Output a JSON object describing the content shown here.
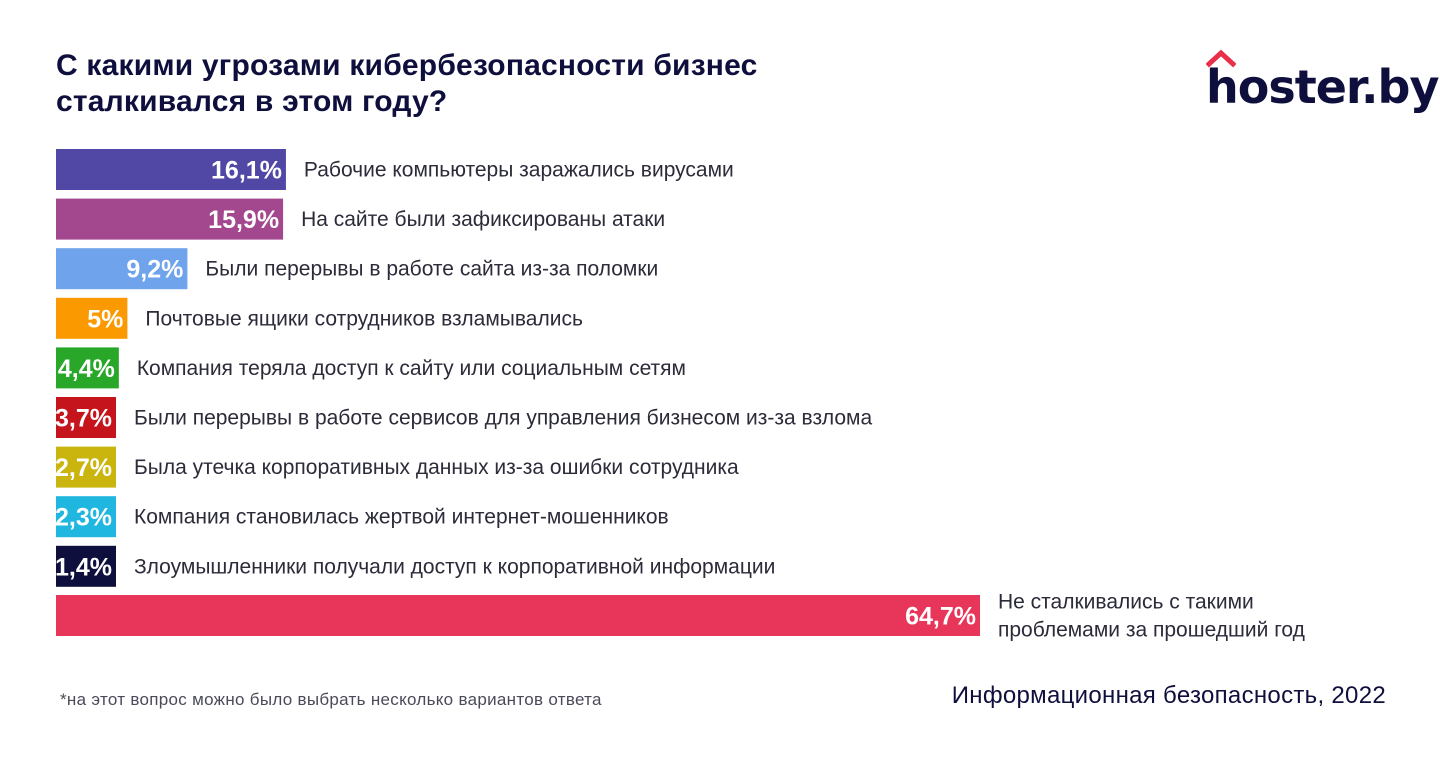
{
  "header": {
    "title_line1": "С какими угрозами кибербезопасности бизнес",
    "title_line2": "сталкивался в этом году?"
  },
  "logo": {
    "text": "hoster.by",
    "roof_color": "#e8304a"
  },
  "chart_data": {
    "type": "bar",
    "orientation": "horizontal",
    "unit": "%",
    "categories": [
      "Рабочие компьютеры заражались вирусами",
      "На сайте были зафиксированы атаки",
      "Были перерывы в работе сайта из-за поломки",
      "Почтовые ящики сотрудников взламывались",
      "Компания теряла доступ к сайту или социальным сетям",
      "Были перерывы в работе сервисов для управления бизнесом из-за взлома",
      "Была утечка корпоративных данных из-за ошибки сотрудника",
      "Компания становилась жертвой интернет-мошенников",
      "Злоумышленники получали доступ к корпоративной информации",
      "Не сталкивались с такими проблемами за прошедший год"
    ],
    "category_lines": [
      [
        "Рабочие компьютеры заражались вирусами"
      ],
      [
        "На сайте были зафиксированы атаки"
      ],
      [
        "Были перерывы в работе сайта из-за поломки"
      ],
      [
        "Почтовые ящики сотрудников взламывались"
      ],
      [
        "Компания теряла доступ к сайту или социальным сетям"
      ],
      [
        "Были перерывы в работе сервисов для управления бизнесом из-за взлома"
      ],
      [
        "Была утечка корпоративных данных из-за ошибки сотрудника"
      ],
      [
        "Компания становилась жертвой интернет-мошенников"
      ],
      [
        "Злоумышленники получали доступ к корпоративной информации"
      ],
      [
        "Не сталкивались с такими",
        "проблемами за прошедший год"
      ]
    ],
    "values": [
      16.1,
      15.9,
      9.2,
      5,
      4.4,
      3.7,
      2.7,
      2.3,
      1.4,
      64.7
    ],
    "value_labels": [
      "16,1%",
      "15,9%",
      "9,2%",
      "5%",
      "4,4%",
      "3,7%",
      "2,7%",
      "2,3%",
      "1,4%",
      "64,7%"
    ],
    "colors": [
      "#5148a6",
      "#a3488e",
      "#6fa3ec",
      "#fb9a00",
      "#29a729",
      "#c5141b",
      "#c9b50e",
      "#1fb6e0",
      "#0f0f3d",
      "#e8365a"
    ]
  },
  "footer": {
    "footnote": "*на этот вопрос можно было выбрать несколько вариантов ответа",
    "source": "Информационная безопасность, 2022"
  }
}
